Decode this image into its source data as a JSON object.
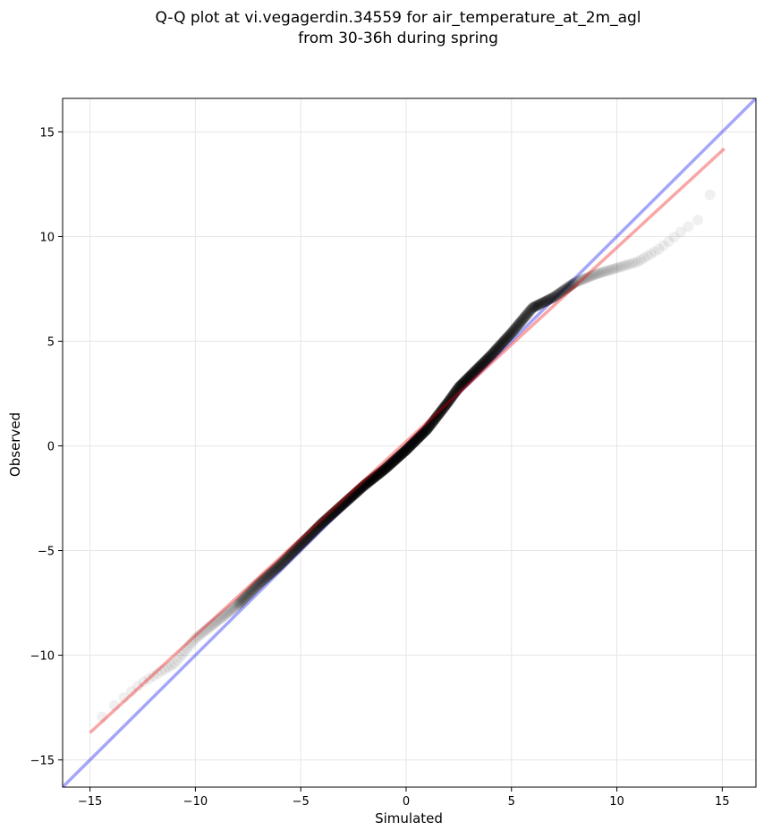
{
  "chart_data": {
    "type": "scatter",
    "title_line1": "Q-Q plot at vi.vegagerdin.34559 for air_temperature_at_2m_agl",
    "title_line2": "from 30-36h during spring",
    "xlabel": "Simulated",
    "ylabel": "Observed",
    "xlim": [
      -16.3,
      16.6
    ],
    "ylim": [
      -16.3,
      16.6
    ],
    "xticks": [
      -15,
      -10,
      -5,
      0,
      5,
      10,
      15
    ],
    "yticks": [
      -15,
      -10,
      -5,
      0,
      5,
      10,
      15
    ],
    "xtick_labels": [
      "−15",
      "−10",
      "−5",
      "0",
      "5",
      "10",
      "15"
    ],
    "ytick_labels": [
      "−15",
      "−10",
      "−5",
      "0",
      "5",
      "10",
      "15"
    ],
    "grid": true,
    "colors": {
      "points": "#000000",
      "identity_line": "#0000ee",
      "fit_line": "#ee0000",
      "grid": "#e6e6e6"
    },
    "identity_line": {
      "x": [
        -16.3,
        16.6
      ],
      "y": [
        -16.3,
        16.6
      ]
    },
    "fit_line": {
      "x": [
        -15.0,
        15.1
      ],
      "y": [
        -13.7,
        14.2
      ]
    },
    "qq_curve_anchors": {
      "x": [
        -15.0,
        -14.3,
        -13.5,
        -12.5,
        -11.0,
        -10.0,
        -9.0,
        -8.0,
        -7.0,
        -6.0,
        -5.0,
        -4.0,
        -3.0,
        -2.0,
        -1.0,
        0.0,
        1.0,
        2.0,
        2.5,
        3.0,
        4.0,
        5.0,
        6.0,
        7.0,
        8.0,
        9.0,
        10.0,
        11.0,
        12.0,
        13.0,
        14.0,
        14.5,
        15.0
      ],
      "y": [
        -13.7,
        -12.8,
        -12.1,
        -11.3,
        -10.4,
        -9.2,
        -8.4,
        -7.6,
        -6.6,
        -5.7,
        -4.7,
        -3.7,
        -2.8,
        -1.9,
        -1.1,
        -0.2,
        0.8,
        2.1,
        2.8,
        3.3,
        4.3,
        5.4,
        6.6,
        7.1,
        7.8,
        8.2,
        8.5,
        8.8,
        9.4,
        10.2,
        10.9,
        12.2,
        12.4
      ]
    }
  }
}
